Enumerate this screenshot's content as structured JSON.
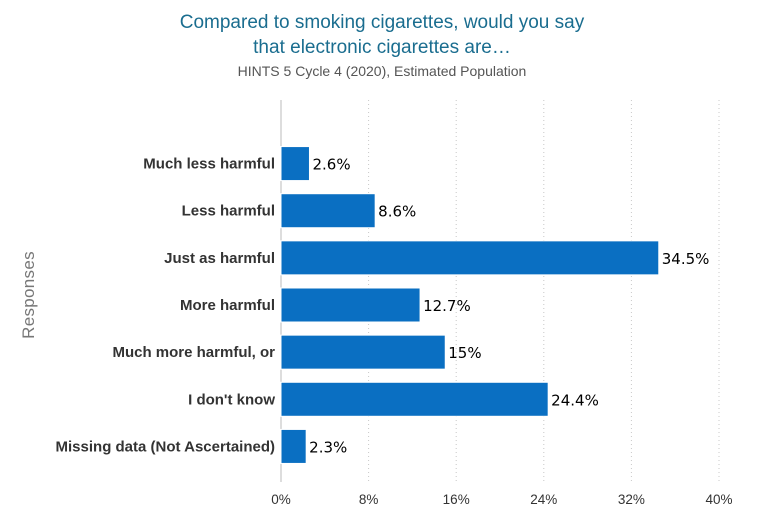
{
  "chart_data": {
    "type": "bar",
    "orientation": "horizontal",
    "title_lines": [
      "Compared to smoking cigarettes, would you say",
      "that electronic cigarettes are…"
    ],
    "subtitle": "HINTS 5 Cycle 4 (2020), Estimated Population",
    "ylabel": "Responses",
    "xlabel": "",
    "categories": [
      "Much less harmful",
      "Less harmful",
      "Just as harmful",
      "More harmful",
      "Much more harmful, or",
      "I don't know",
      "Missing data (Not Ascertained)"
    ],
    "values": [
      2.6,
      8.6,
      34.5,
      12.7,
      15,
      24.4,
      2.3
    ],
    "data_labels": [
      "2.6%",
      "8.6%",
      "34.5%",
      "12.7%",
      "15%",
      "24.4%",
      "2.3%"
    ],
    "xlim": [
      0,
      40
    ],
    "x_ticks": [
      0,
      8,
      16,
      24,
      32,
      40
    ],
    "x_tick_labels": [
      "0%",
      "8%",
      "16%",
      "24%",
      "32%",
      "40%"
    ],
    "grid": "vertical dotted",
    "bar_color": "#0a6fc2"
  }
}
